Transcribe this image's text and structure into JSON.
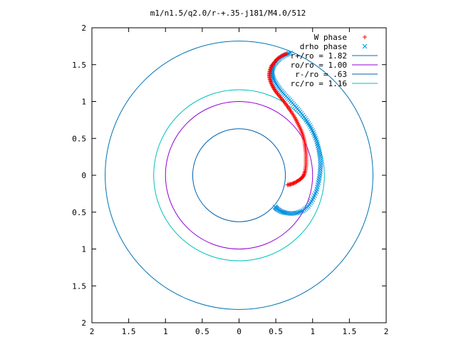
{
  "chart_data": {
    "type": "scatter",
    "title": "m1/n1.5/q2.0/r-+.35-j181/M4.0/512",
    "xlabel": "",
    "ylabel": "",
    "xlim": [
      -2,
      2
    ],
    "ylim": [
      -2,
      2
    ],
    "grid": false,
    "legend_position": "top-right",
    "x_tick_labels": [
      "2",
      "1.5",
      "1",
      "0.5",
      "0",
      "0.5",
      "1",
      "1.5",
      "2"
    ],
    "x_tick_values": [
      -2,
      -1.5,
      -1,
      -0.5,
      0,
      0.5,
      1,
      1.5,
      2
    ],
    "y_tick_labels": [
      "2",
      "1.5",
      "1",
      "0.5",
      "0",
      "0.5",
      "1",
      "1.5",
      "2"
    ],
    "y_tick_values": [
      2,
      1.5,
      1,
      0.5,
      0,
      -0.5,
      -1,
      -1.5,
      -2
    ],
    "circles": [
      {
        "name": "r+/ro = 1.82",
        "radius": 1.82,
        "color": "#0072B2"
      },
      {
        "name": "ro/ro = 1.00",
        "radius": 1.0,
        "color": "#9400D3"
      },
      {
        "name": "r-/ro = .63",
        "radius": 0.63,
        "color": "#0060AD"
      },
      {
        "name": "rc/ro = 1.16",
        "radius": 1.16,
        "color": "#00C0C0"
      }
    ],
    "series": [
      {
        "name": "W phase",
        "marker": "+",
        "color": "#FF0000",
        "x": [
          0.65,
          0.58,
          0.52,
          0.48,
          0.44,
          0.42,
          0.41,
          0.42,
          0.44,
          0.47,
          0.51,
          0.56,
          0.61,
          0.66,
          0.71,
          0.76,
          0.8,
          0.84,
          0.87,
          0.89,
          0.9,
          0.91,
          0.91,
          0.91,
          0.9,
          0.88,
          0.85,
          0.81,
          0.76,
          0.71,
          0.66
        ],
        "y": [
          1.65,
          1.62,
          1.58,
          1.53,
          1.48,
          1.42,
          1.36,
          1.3,
          1.24,
          1.18,
          1.12,
          1.06,
          1.0,
          0.93,
          0.86,
          0.78,
          0.7,
          0.62,
          0.54,
          0.46,
          0.38,
          0.3,
          0.22,
          0.14,
          0.06,
          0.0,
          -0.04,
          -0.07,
          -0.1,
          -0.12,
          -0.13
        ]
      },
      {
        "name": "drho phase",
        "marker": "x",
        "color": "#0090E0",
        "x": [
          0.7,
          0.63,
          0.56,
          0.51,
          0.47,
          0.45,
          0.45,
          0.47,
          0.51,
          0.56,
          0.62,
          0.69,
          0.76,
          0.83,
          0.9,
          0.96,
          1.01,
          1.05,
          1.08,
          1.1,
          1.11,
          1.1,
          1.08,
          1.05,
          1.0,
          0.94,
          0.87,
          0.79,
          0.71,
          0.63,
          0.57,
          0.52,
          0.49
        ],
        "y": [
          1.66,
          1.63,
          1.59,
          1.54,
          1.49,
          1.43,
          1.37,
          1.3,
          1.23,
          1.16,
          1.09,
          1.02,
          0.94,
          0.86,
          0.77,
          0.68,
          0.58,
          0.48,
          0.37,
          0.26,
          0.14,
          0.02,
          -0.1,
          -0.22,
          -0.33,
          -0.42,
          -0.48,
          -0.51,
          -0.52,
          -0.51,
          -0.49,
          -0.46,
          -0.43
        ]
      }
    ]
  }
}
